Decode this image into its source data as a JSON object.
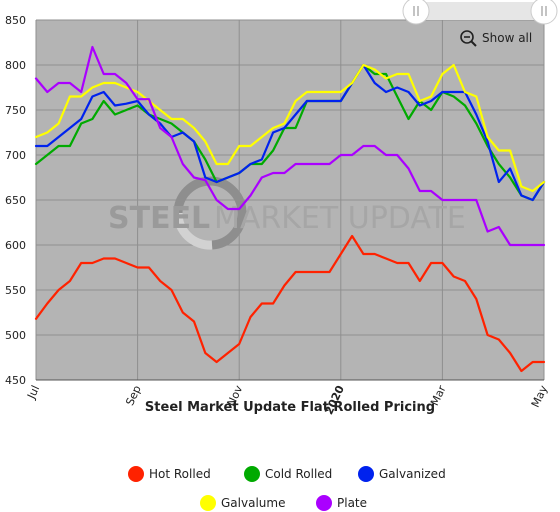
{
  "chart_data": {
    "type": "line",
    "title": "Steel Market Update Flat Rolled Pricing",
    "watermark": {
      "bold": "STEEL",
      "rest": "MARKET UPDATE"
    },
    "show_all_label": "Show all",
    "ylim": [
      450,
      850
    ],
    "y_ticks": [
      "850",
      "800",
      "750",
      "700",
      "650",
      "600",
      "550",
      "500",
      "450"
    ],
    "x_ticks": [
      {
        "label": "Jul",
        "pos": 0,
        "bold": false
      },
      {
        "label": "Sep",
        "pos": 9,
        "bold": false
      },
      {
        "label": "Nov",
        "pos": 18,
        "bold": false
      },
      {
        "label": "2020",
        "pos": 27,
        "bold": true
      },
      {
        "label": "Mar",
        "pos": 36,
        "bold": false
      },
      {
        "label": "May",
        "pos": 45,
        "bold": false
      }
    ],
    "x_count": 46,
    "plot_bg": "#b4b4b4",
    "grid": true,
    "legend_position": "bottom",
    "series": [
      {
        "name": "Hot Rolled",
        "color": "#ff2200",
        "values": [
          518,
          535,
          550,
          560,
          580,
          580,
          585,
          585,
          580,
          575,
          575,
          560,
          550,
          525,
          515,
          480,
          470,
          480,
          490,
          520,
          535,
          535,
          555,
          570,
          570,
          570,
          570,
          590,
          610,
          590,
          590,
          585,
          580,
          580,
          560,
          580,
          580,
          565,
          560,
          540,
          500,
          495,
          480,
          460,
          470,
          470
        ]
      },
      {
        "name": "Cold Rolled",
        "color": "#00aa00",
        "values": [
          690,
          700,
          710,
          710,
          735,
          740,
          760,
          745,
          750,
          755,
          745,
          740,
          735,
          725,
          715,
          695,
          670,
          675,
          680,
          690,
          690,
          705,
          730,
          730,
          760,
          760,
          760,
          760,
          780,
          800,
          790,
          790,
          765,
          740,
          760,
          750,
          770,
          765,
          755,
          735,
          710,
          690,
          675,
          655,
          650,
          670
        ]
      },
      {
        "name": "Galvanized",
        "color": "#0022ee",
        "values": [
          710,
          710,
          720,
          730,
          740,
          765,
          770,
          755,
          757,
          760,
          745,
          735,
          720,
          725,
          715,
          675,
          670,
          675,
          680,
          690,
          695,
          725,
          730,
          745,
          760,
          760,
          760,
          760,
          780,
          800,
          780,
          770,
          775,
          770,
          755,
          760,
          770,
          770,
          770,
          745,
          715,
          670,
          685,
          655,
          650,
          670
        ]
      },
      {
        "name": "Galvalume",
        "color": "#ffff00",
        "values": [
          720,
          725,
          735,
          765,
          765,
          775,
          780,
          780,
          775,
          770,
          760,
          750,
          740,
          740,
          730,
          715,
          690,
          690,
          710,
          710,
          720,
          730,
          735,
          760,
          770,
          770,
          770,
          770,
          780,
          800,
          795,
          785,
          790,
          790,
          760,
          765,
          790,
          800,
          770,
          765,
          720,
          705,
          705,
          665,
          660,
          670
        ]
      },
      {
        "name": "Plate",
        "color": "#aa00ff",
        "values": [
          785,
          770,
          780,
          780,
          770,
          820,
          790,
          790,
          780,
          762,
          762,
          730,
          720,
          690,
          675,
          672,
          650,
          640,
          640,
          655,
          675,
          680,
          680,
          690,
          690,
          690,
          690,
          700,
          700,
          710,
          710,
          700,
          700,
          685,
          660,
          660,
          650,
          650,
          650,
          650,
          615,
          620,
          600,
          600,
          600,
          600
        ]
      }
    ]
  }
}
